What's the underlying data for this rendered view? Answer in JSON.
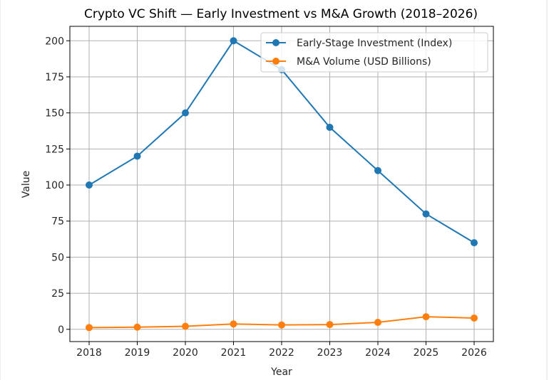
{
  "chart_data": {
    "type": "line",
    "title": "Crypto VC Shift — Early Investment vs M&A Growth (2018–2026)",
    "xlabel": "Year",
    "ylabel": "Value",
    "x": [
      2018,
      2019,
      2020,
      2021,
      2022,
      2023,
      2024,
      2025,
      2026
    ],
    "x_tick_labels": [
      "2018",
      "2019",
      "2020",
      "2021",
      "2022",
      "2023",
      "2024",
      "2025",
      "2026"
    ],
    "y_ticks": [
      0,
      25,
      50,
      75,
      100,
      125,
      150,
      175,
      200
    ],
    "y_tick_labels": [
      "0",
      "25",
      "50",
      "75",
      "100",
      "125",
      "150",
      "175",
      "200"
    ],
    "ylim": [
      -8.5,
      210
    ],
    "xlim": [
      2017.6,
      2026.4
    ],
    "grid": true,
    "legend_position": "upper-right",
    "series": [
      {
        "name": "Early-Stage Investment (Index)",
        "color": "#1f77b4",
        "marker": "circle",
        "values": [
          100,
          120,
          150,
          200,
          180,
          140,
          110,
          80,
          60
        ]
      },
      {
        "name": "M&A Volume (USD Billions)",
        "color": "#ff7f0e",
        "marker": "circle",
        "values": [
          1.2,
          1.5,
          2.1,
          3.7,
          3.0,
          3.3,
          4.8,
          8.7,
          7.8
        ]
      }
    ]
  }
}
